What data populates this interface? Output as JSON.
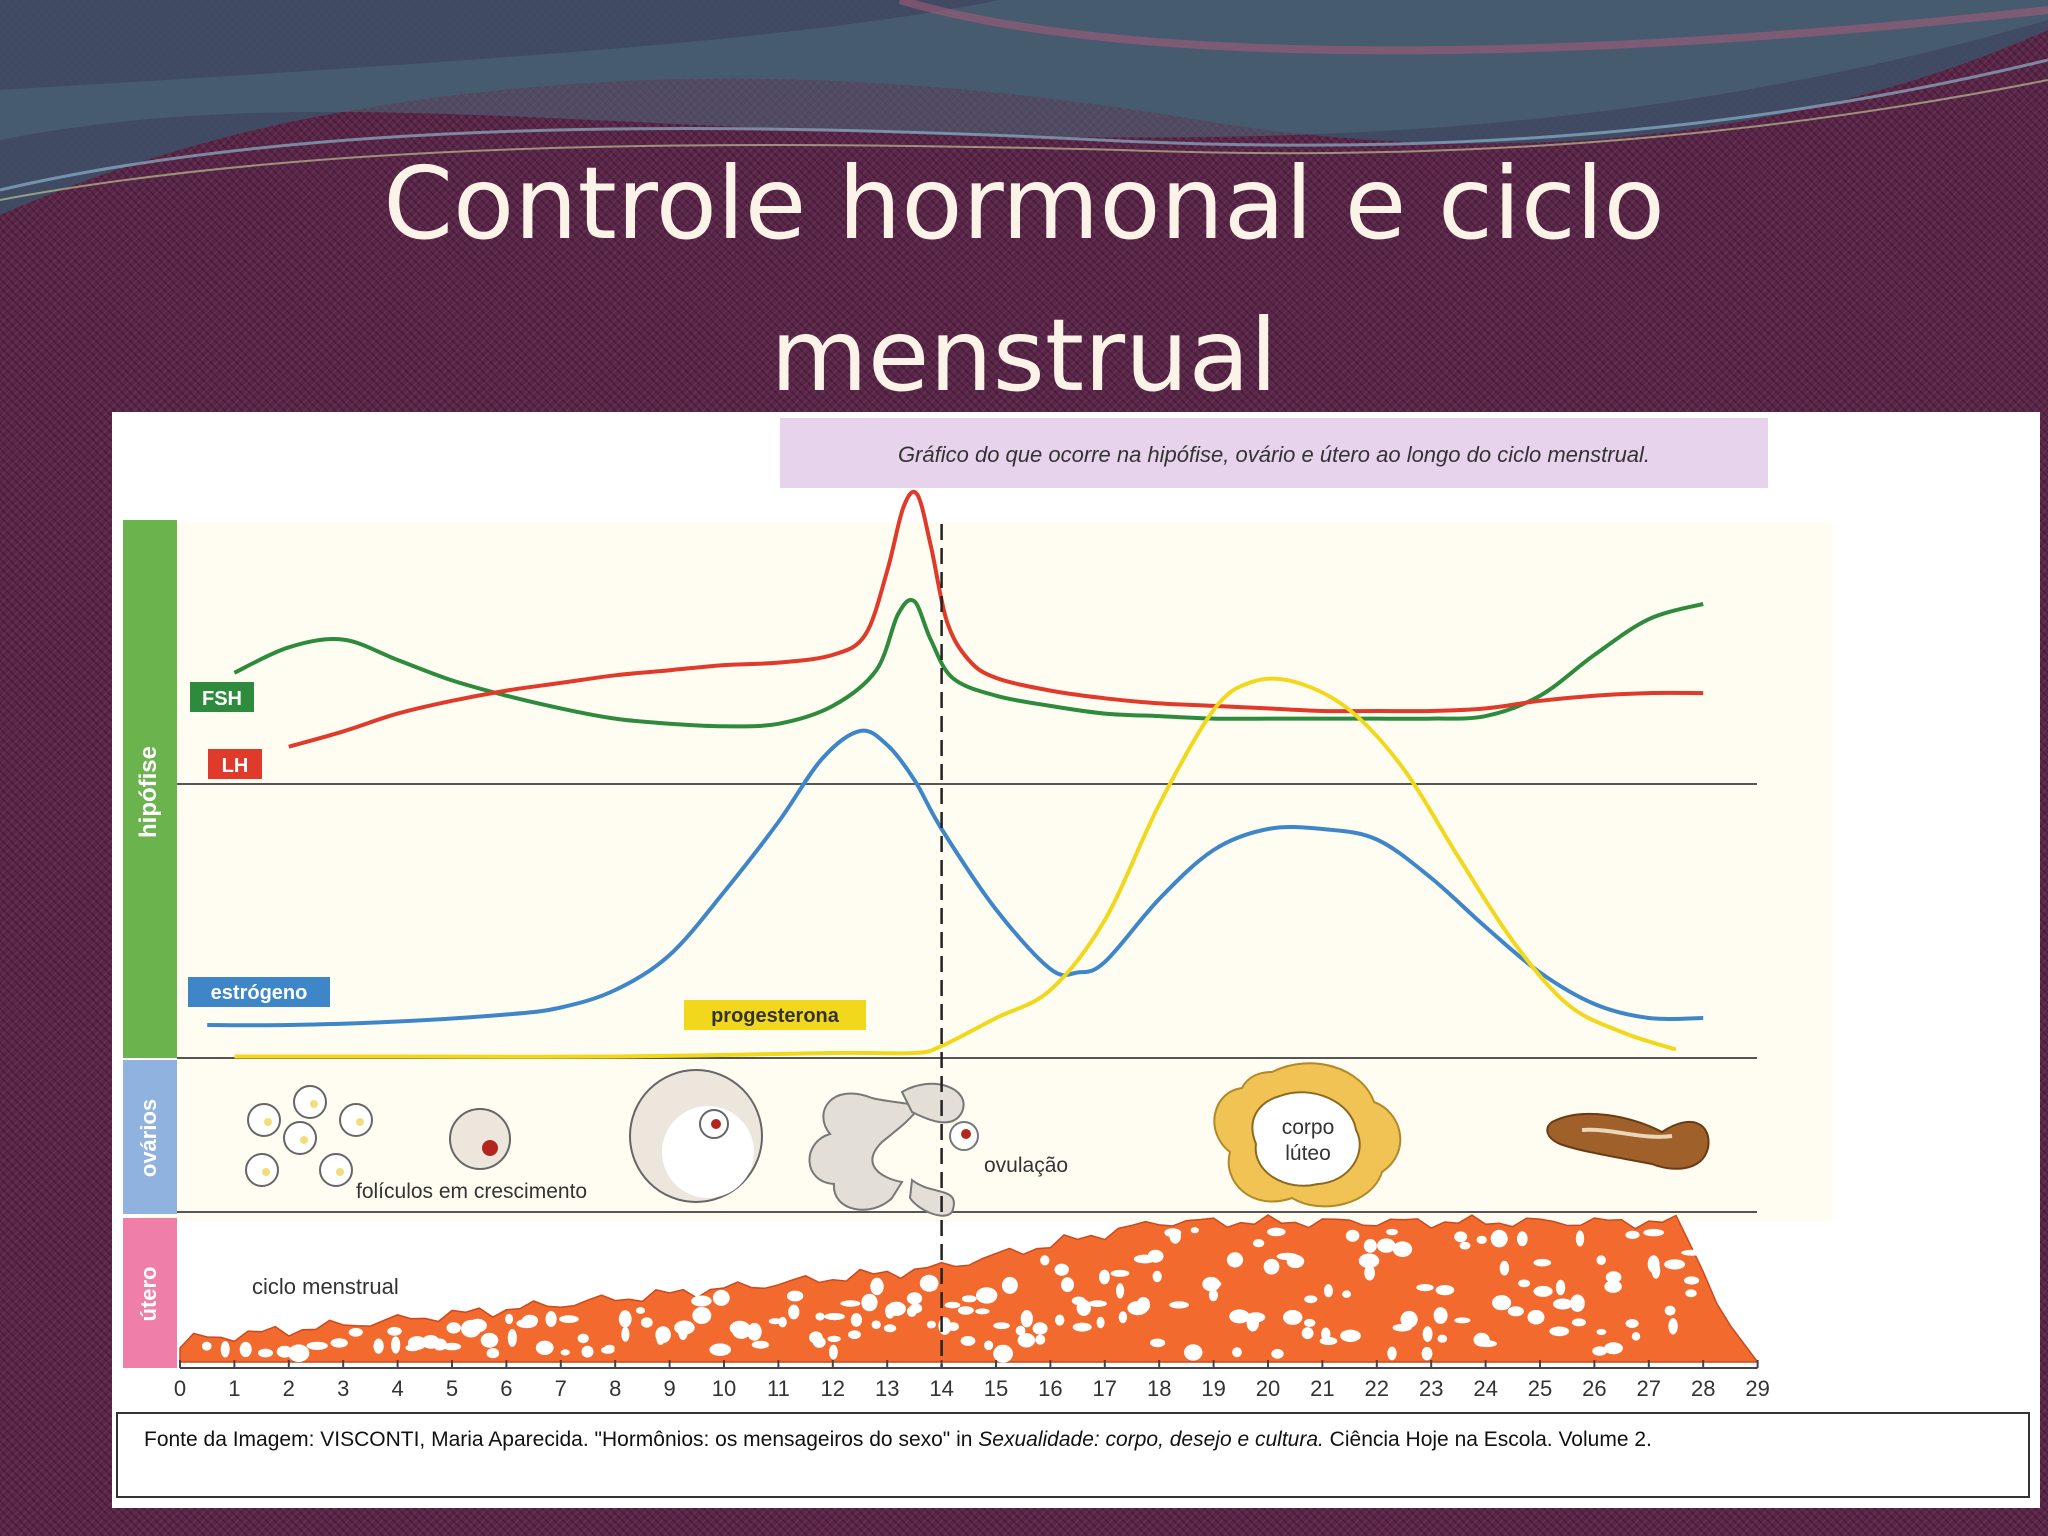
{
  "slide": {
    "title_line1": "Controle hormonal e ciclo",
    "title_line2": "menstrual"
  },
  "figure": {
    "header": "Gráfico do que ocorre na hipófise, ovário e útero ao longo do ciclo menstrual.",
    "section_labels": [
      "hipófise",
      "ovários",
      "útero"
    ],
    "ovary_labels": {
      "growing": "folículos em crescimento",
      "ovulation": "ovulação",
      "corpus_luteum_1": "corpo",
      "corpus_luteum_2": "lúteo"
    },
    "uterus_label": "ciclo menstrual",
    "source": {
      "prefix": "Fonte da Imagem: VISCONTI, Maria Aparecida. \"Hormônios: os mensageiros do sexo\" in ",
      "italic": "Sexualidade: corpo, desejo e cultura.",
      "suffix": " Ciência Hoje na Escola. Volume 2."
    }
  },
  "chart_data": {
    "type": "line",
    "xlim": [
      0,
      29
    ],
    "x_ticks": [
      "0",
      "1",
      "2",
      "3",
      "4",
      "5",
      "6",
      "7",
      "8",
      "9",
      "10",
      "11",
      "12",
      "13",
      "14",
      "15",
      "16",
      "17",
      "18",
      "19",
      "20",
      "21",
      "22",
      "23",
      "24",
      "25",
      "26",
      "27",
      "28",
      "29"
    ],
    "ovulation_day": 14,
    "colors": {
      "FSH": "#2e8b3e",
      "LH": "#e03a2a",
      "estrogeno": "#3f86c8",
      "progesterona": "#f2d81c"
    },
    "series": [
      {
        "name": "FSH",
        "panel": "hipófise",
        "x": [
          1,
          2,
          3,
          4,
          5,
          6,
          7,
          8,
          9,
          10,
          11,
          12,
          12.8,
          13.2,
          13.5,
          13.8,
          14.2,
          15,
          16,
          17,
          18,
          19,
          20,
          21,
          22,
          23,
          24,
          25,
          26,
          27,
          28
        ],
        "values": [
          0.35,
          0.45,
          0.48,
          0.4,
          0.32,
          0.26,
          0.21,
          0.17,
          0.15,
          0.14,
          0.15,
          0.22,
          0.36,
          0.58,
          0.63,
          0.48,
          0.33,
          0.26,
          0.22,
          0.19,
          0.18,
          0.17,
          0.17,
          0.17,
          0.17,
          0.17,
          0.18,
          0.26,
          0.42,
          0.56,
          0.62
        ]
      },
      {
        "name": "LH",
        "panel": "hipófise",
        "x": [
          2,
          3,
          4,
          5,
          6,
          7,
          8,
          9,
          10,
          11,
          12,
          12.6,
          13,
          13.3,
          13.55,
          13.8,
          14.1,
          14.5,
          15,
          16,
          17,
          18,
          19,
          20,
          21,
          22,
          23,
          24,
          25,
          26,
          27,
          28
        ],
        "values": [
          0.06,
          0.12,
          0.19,
          0.24,
          0.28,
          0.31,
          0.34,
          0.36,
          0.38,
          0.39,
          0.42,
          0.5,
          0.75,
          1.0,
          1.05,
          0.85,
          0.55,
          0.4,
          0.33,
          0.28,
          0.25,
          0.23,
          0.22,
          0.21,
          0.2,
          0.2,
          0.2,
          0.21,
          0.24,
          0.26,
          0.27,
          0.27
        ]
      },
      {
        "name": "estrógeno",
        "panel": "ovário",
        "x": [
          0.5,
          2,
          4,
          6,
          7,
          8,
          9,
          10,
          11,
          11.8,
          12.5,
          13,
          13.5,
          14,
          15,
          16,
          16.5,
          17,
          18,
          19,
          20,
          21,
          22,
          23,
          24,
          25,
          26,
          27,
          28
        ],
        "values": [
          0.02,
          0.02,
          0.03,
          0.05,
          0.07,
          0.12,
          0.22,
          0.4,
          0.6,
          0.78,
          0.86,
          0.82,
          0.72,
          0.58,
          0.35,
          0.18,
          0.17,
          0.2,
          0.38,
          0.52,
          0.58,
          0.58,
          0.55,
          0.44,
          0.3,
          0.17,
          0.08,
          0.04,
          0.04
        ]
      },
      {
        "name": "progesterona",
        "panel": "ovário",
        "x": [
          1,
          4,
          8,
          12,
          13.5,
          14,
          15,
          16,
          17,
          18,
          19,
          19.7,
          20.5,
          21.5,
          22.5,
          23.5,
          24.5,
          25.5,
          26.5,
          27.5
        ],
        "values": [
          -0.07,
          -0.07,
          -0.07,
          -0.06,
          -0.06,
          -0.04,
          0.04,
          0.12,
          0.32,
          0.65,
          0.92,
          1.0,
          1.0,
          0.92,
          0.75,
          0.5,
          0.26,
          0.08,
          0.0,
          -0.05
        ]
      }
    ]
  }
}
